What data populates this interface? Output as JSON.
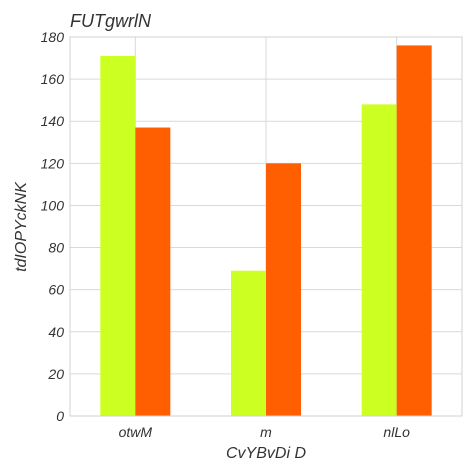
{
  "chart_data": {
    "type": "bar",
    "title": "FUTgwrlN",
    "xlabel": "CvYBvDi D",
    "ylabel": "tdIOPYckNK",
    "categories": [
      "otwM",
      "m",
      "nlLo"
    ],
    "series": [
      {
        "values": [
          171,
          69,
          148
        ],
        "color": "#ccff22"
      },
      {
        "values": [
          137,
          120,
          176
        ],
        "color": "#ff5f00"
      }
    ],
    "ylim": [
      0,
      180
    ],
    "yticks": [
      0,
      20,
      40,
      60,
      80,
      100,
      120,
      140,
      160,
      180
    ],
    "grid": true,
    "legend": "none"
  }
}
